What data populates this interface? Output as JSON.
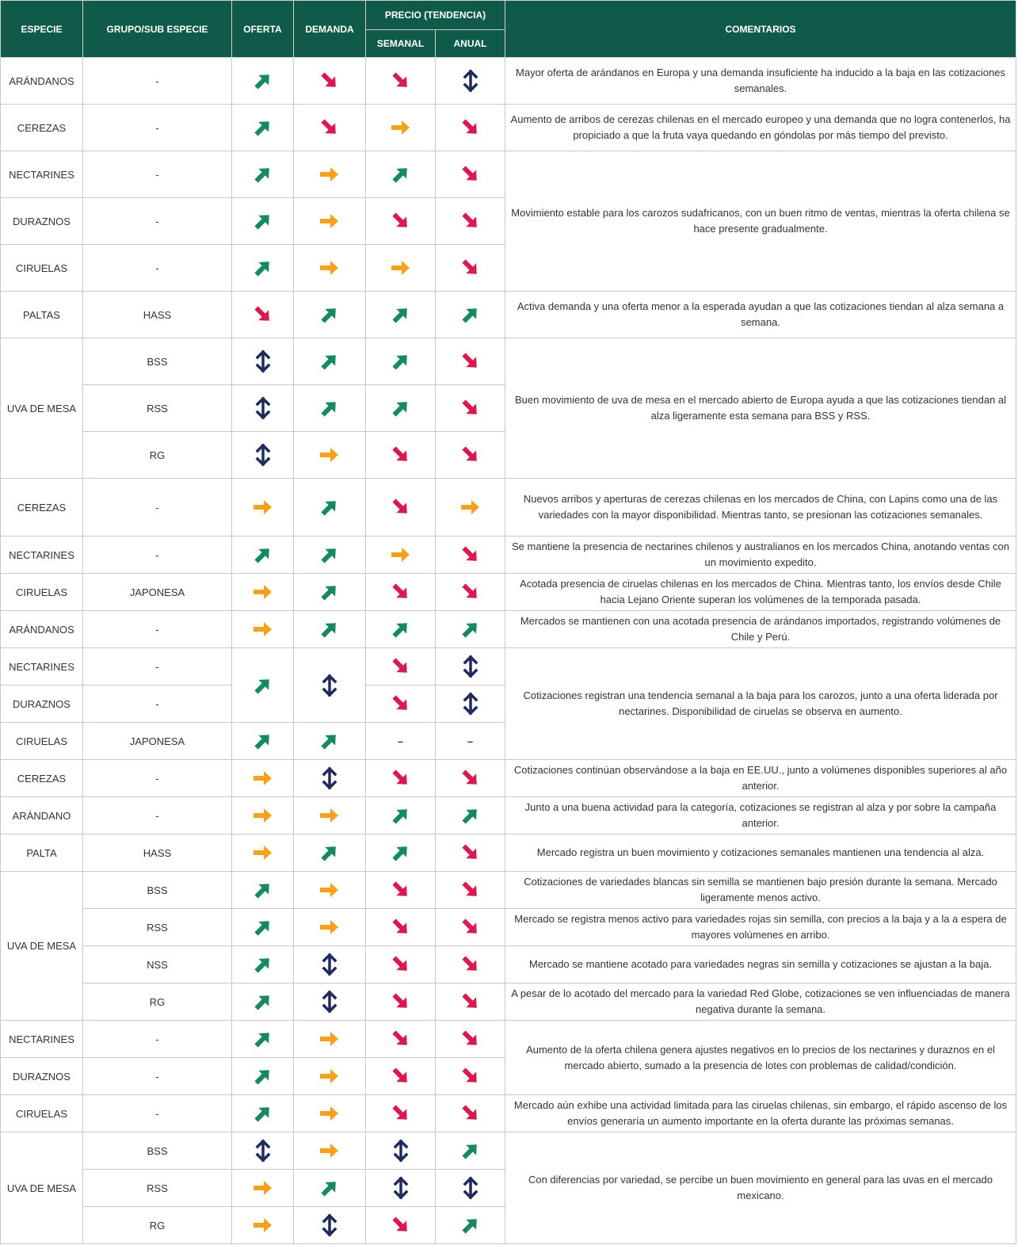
{
  "header": {
    "especie": "ESPECIE",
    "grupo": "GRUPO/SUB ESPECIE",
    "oferta": "OFERTA",
    "demanda": "DEMANDA",
    "precio": "PRECIO (TENDENCIA)",
    "semanal": "SEMANAL",
    "anual": "ANUAL",
    "comentarios": "COMENTARIOS"
  },
  "table": {
    "rows": [
      [
        "ARÁNDANOS",
        "-",
        "up",
        "down",
        "down",
        "mixed",
        "Mayor oferta de arándanos en Europa y una demanda insuficiente ha inducido a la baja en las cotizaciones semanales."
      ],
      [
        "CEREZAS",
        "-",
        "up",
        "down",
        "flat",
        "down",
        "Aumento de arribos de cerezas chilenas en el mercado europeo y una demanda que no logra contenerlos, ha propiciado a que la fruta vaya quedando en góndolas por más tiempo del previsto."
      ],
      [
        "NECTARINES",
        "-",
        "up",
        "flat",
        "up",
        "down",
        "Movimiento estable para los carozos sudafricanos, con un buen ritmo de ventas, mientras la oferta chilena se hace presente gradualmente."
      ],
      [
        "DURAZNOS",
        "-",
        "up",
        "flat",
        "down",
        "down",
        null
      ],
      [
        "CIRUELAS",
        "-",
        "up",
        "flat",
        "flat",
        "down",
        null
      ],
      [
        "PALTAS",
        "HASS",
        "down",
        "up",
        "up",
        "up",
        "Activa demanda y una oferta menor a la esperada ayudan a que las cotizaciones tiendan al alza semana a semana."
      ],
      [
        "UVA DE MESA",
        "BSS",
        "mixed",
        "up",
        "up",
        "down",
        "Buen movimiento de uva de mesa en el mercado abierto de Europa ayuda a que las cotizaciones tiendan al alza ligeramente esta semana para BSS y RSS."
      ],
      [
        null,
        "RSS",
        "mixed",
        "up",
        "up",
        "down",
        null
      ],
      [
        null,
        "RG",
        "mixed",
        "flat",
        "down",
        "down",
        null
      ],
      [
        "CEREZAS",
        "-",
        "flat",
        "up",
        "down",
        "flat",
        "Nuevos arribos y aperturas de cerezas chilenas en los mercados de China, con Lapins como una de las variedades con la mayor disponibilidad. Mientras tanto, se presionan las cotizaciones semanales."
      ],
      [
        "NECTARINES",
        "-",
        "up",
        "up",
        "flat",
        "down",
        "Se mantiene la presencia de nectarines chilenos y australianos en los mercados China, anotando ventas con un movimiento expedito."
      ],
      [
        "CIRUELAS",
        "JAPONESA",
        "flat",
        "up",
        "down",
        "down",
        "Acotada presencia de ciruelas chilenas en los mercados de China. Mientras tanto, los envíos desde Chile hacia Lejano Oriente superan los volúmenes de la temporada pasada."
      ],
      [
        "ARÁNDANOS",
        "-",
        "flat",
        "up",
        "up",
        "up",
        "Mercados se mantienen con una acotada presencia de arándanos importados, registrando volúmenes de Chile y Perú."
      ],
      [
        "NECTARINES",
        "-",
        "up",
        "mixed",
        "down",
        "mixed",
        "Cotizaciones registran una tendencia semanal a la baja para los carozos, junto a una oferta liderada por nectarines. Disponibilidad de ciruelas se observa en aumento."
      ],
      [
        "DURAZNOS",
        "-",
        null,
        null,
        "down",
        "mixed",
        null
      ],
      [
        "CIRUELAS",
        "JAPONESA",
        "up",
        "up",
        "–",
        "–",
        null
      ],
      [
        "CEREZAS",
        "-",
        "flat",
        "mixed",
        "down",
        "down",
        "Cotizaciones continúan observándose a la baja en EE.UU., junto a volúmenes disponibles superiores al año anterior."
      ],
      [
        "ARÁNDANO",
        "-",
        "flat",
        "flat",
        "up",
        "up",
        "Junto a una buena actividad para la categoría, cotizaciones se registran al alza y por sobre la campaña anterior."
      ],
      [
        "PALTA",
        "HASS",
        "flat",
        "up",
        "up",
        "down",
        "Mercado registra un buen movimiento y cotizaciones semanales mantienen una tendencia al alza."
      ],
      [
        "UVA DE MESA",
        "BSS",
        "up",
        "flat",
        "down",
        "down",
        "Cotizaciones de variedades blancas sin semilla se mantienen bajo presión durante la semana. Mercado ligeramente menos activo."
      ],
      [
        null,
        "RSS",
        "up",
        "flat",
        "down",
        "down",
        "Mercado se registra menos activo para variedades rojas sin semilla, con precios a la baja y a la a espera de mayores volúmenes en arribo."
      ],
      [
        null,
        "NSS",
        "up",
        "mixed",
        "down",
        "down",
        "Mercado se mantiene acotado para variedades negras sin semilla y cotizaciones se ajustan a la baja."
      ],
      [
        null,
        "RG",
        "up",
        "mixed",
        "down",
        "down",
        "A pesar de lo acotado del mercado para la variedad Red Globe, cotizaciones se ven influenciadas de manera negativa durante la semana."
      ],
      [
        "NECTARINES",
        "-",
        "up",
        "flat",
        "down",
        "down",
        "Aumento de la oferta chilena genera ajustes negativos en lo precios de los nectarines y duraznos en el mercado abierto, sumado a la presencia de lotes con problemas de calidad/condición."
      ],
      [
        "DURAZNOS",
        "-",
        "up",
        "flat",
        "down",
        "down",
        null
      ],
      [
        "CIRUELAS",
        "-",
        "up",
        "flat",
        "down",
        "down",
        "Mercado aún exhibe una actividad limitada para las ciruelas chilenas, sin embargo, el rápido ascenso de los envíos generaría un aumento importante en la oferta durante las próximas semanas."
      ],
      [
        "UVA DE MESA",
        "BSS",
        "mixed",
        "flat",
        "mixed",
        "up",
        "Con diferencias por variedad, se percibe un buen movimiento en general para las uvas en el mercado mexicano."
      ],
      [
        null,
        "RSS",
        "flat",
        "up",
        "mixed",
        "mixed",
        null
      ],
      [
        null,
        "RG",
        "flat",
        "mixed",
        "down",
        "up",
        null
      ]
    ]
  }
}
